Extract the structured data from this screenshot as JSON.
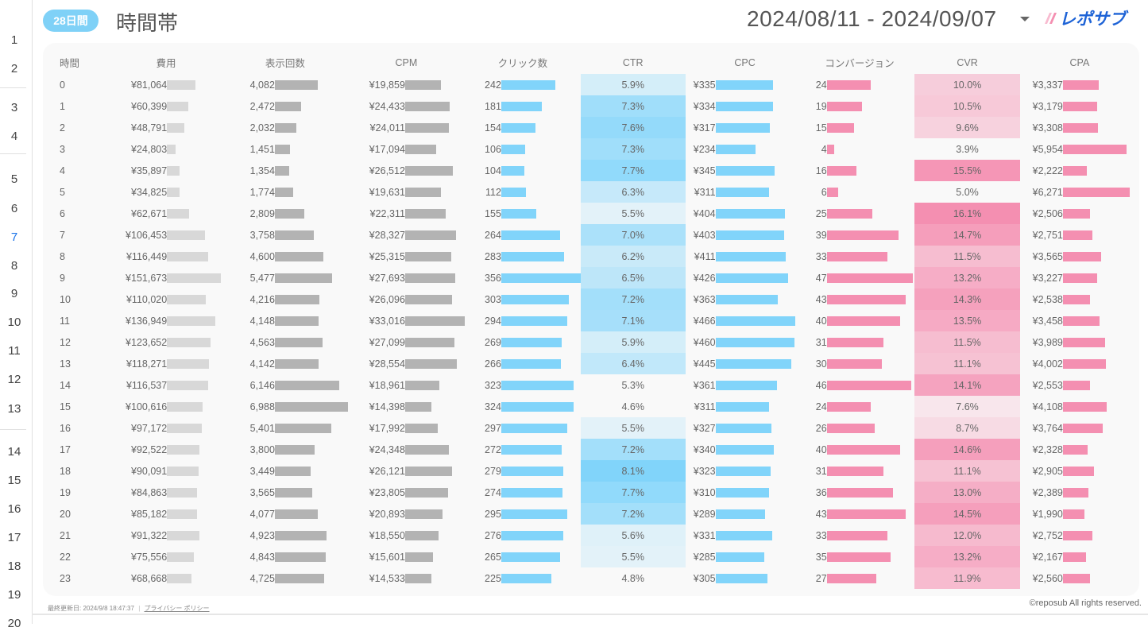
{
  "gutter": {
    "rows": [
      "1",
      "2",
      "3",
      "4",
      "5",
      "6",
      "7",
      "8",
      "9",
      "10",
      "11",
      "12",
      "13",
      "14",
      "15",
      "16",
      "17",
      "18",
      "19",
      "20"
    ],
    "active": "7"
  },
  "header": {
    "period_badge": "28日間",
    "title": "時間帯",
    "date_range": "2024/08/11 - 2024/09/07",
    "dropdown_icon": "caret-down-icon",
    "logo_text": "レポサブ"
  },
  "colors": {
    "badge": "#7fd1f7",
    "gray_light_bar": "#d8d8d8",
    "gray_dark_bar": "#b3b3b3",
    "blue_bar": "#81d4fa",
    "pink_bar": "#f48fb1",
    "ctr_heat_base": "#81d4fa",
    "cvr_heat_base": "#f48fb1",
    "logo_blue": "#1e63d6"
  },
  "table": {
    "headers": [
      "時間",
      "費用",
      "表示回数",
      "CPM",
      "クリック数",
      "CTR",
      "CPC",
      "コンバージョン",
      "CVR",
      "CPA"
    ],
    "rows": [
      {
        "hour": "0",
        "cost": "¥81,064",
        "imp": "4,082",
        "cpm": "¥19,859",
        "clicks": "242",
        "ctr": "5.9%",
        "cpc": "¥335",
        "cv": "24",
        "cvr": "10.0%",
        "cpa": "¥3,337"
      },
      {
        "hour": "1",
        "cost": "¥60,399",
        "imp": "2,472",
        "cpm": "¥24,433",
        "clicks": "181",
        "ctr": "7.3%",
        "cpc": "¥334",
        "cv": "19",
        "cvr": "10.5%",
        "cpa": "¥3,179"
      },
      {
        "hour": "2",
        "cost": "¥48,791",
        "imp": "2,032",
        "cpm": "¥24,011",
        "clicks": "154",
        "ctr": "7.6%",
        "cpc": "¥317",
        "cv": "15",
        "cvr": "9.6%",
        "cpa": "¥3,308"
      },
      {
        "hour": "3",
        "cost": "¥24,803",
        "imp": "1,451",
        "cpm": "¥17,094",
        "clicks": "106",
        "ctr": "7.3%",
        "cpc": "¥234",
        "cv": "4",
        "cvr": "3.9%",
        "cpa": "¥5,954"
      },
      {
        "hour": "4",
        "cost": "¥35,897",
        "imp": "1,354",
        "cpm": "¥26,512",
        "clicks": "104",
        "ctr": "7.7%",
        "cpc": "¥345",
        "cv": "16",
        "cvr": "15.5%",
        "cpa": "¥2,222"
      },
      {
        "hour": "5",
        "cost": "¥34,825",
        "imp": "1,774",
        "cpm": "¥19,631",
        "clicks": "112",
        "ctr": "6.3%",
        "cpc": "¥311",
        "cv": "6",
        "cvr": "5.0%",
        "cpa": "¥6,271"
      },
      {
        "hour": "6",
        "cost": "¥62,671",
        "imp": "2,809",
        "cpm": "¥22,311",
        "clicks": "155",
        "ctr": "5.5%",
        "cpc": "¥404",
        "cv": "25",
        "cvr": "16.1%",
        "cpa": "¥2,506"
      },
      {
        "hour": "7",
        "cost": "¥106,453",
        "imp": "3,758",
        "cpm": "¥28,327",
        "clicks": "264",
        "ctr": "7.0%",
        "cpc": "¥403",
        "cv": "39",
        "cvr": "14.7%",
        "cpa": "¥2,751"
      },
      {
        "hour": "8",
        "cost": "¥116,449",
        "imp": "4,600",
        "cpm": "¥25,315",
        "clicks": "283",
        "ctr": "6.2%",
        "cpc": "¥411",
        "cv": "33",
        "cvr": "11.5%",
        "cpa": "¥3,565"
      },
      {
        "hour": "9",
        "cost": "¥151,673",
        "imp": "5,477",
        "cpm": "¥27,693",
        "clicks": "356",
        "ctr": "6.5%",
        "cpc": "¥426",
        "cv": "47",
        "cvr": "13.2%",
        "cpa": "¥3,227"
      },
      {
        "hour": "10",
        "cost": "¥110,020",
        "imp": "4,216",
        "cpm": "¥26,096",
        "clicks": "303",
        "ctr": "7.2%",
        "cpc": "¥363",
        "cv": "43",
        "cvr": "14.3%",
        "cpa": "¥2,538"
      },
      {
        "hour": "11",
        "cost": "¥136,949",
        "imp": "4,148",
        "cpm": "¥33,016",
        "clicks": "294",
        "ctr": "7.1%",
        "cpc": "¥466",
        "cv": "40",
        "cvr": "13.5%",
        "cpa": "¥3,458"
      },
      {
        "hour": "12",
        "cost": "¥123,652",
        "imp": "4,563",
        "cpm": "¥27,099",
        "clicks": "269",
        "ctr": "5.9%",
        "cpc": "¥460",
        "cv": "31",
        "cvr": "11.5%",
        "cpa": "¥3,989"
      },
      {
        "hour": "13",
        "cost": "¥118,271",
        "imp": "4,142",
        "cpm": "¥28,554",
        "clicks": "266",
        "ctr": "6.4%",
        "cpc": "¥445",
        "cv": "30",
        "cvr": "11.1%",
        "cpa": "¥4,002"
      },
      {
        "hour": "14",
        "cost": "¥116,537",
        "imp": "6,146",
        "cpm": "¥18,961",
        "clicks": "323",
        "ctr": "5.3%",
        "cpc": "¥361",
        "cv": "46",
        "cvr": "14.1%",
        "cpa": "¥2,553"
      },
      {
        "hour": "15",
        "cost": "¥100,616",
        "imp": "6,988",
        "cpm": "¥14,398",
        "clicks": "324",
        "ctr": "4.6%",
        "cpc": "¥311",
        "cv": "24",
        "cvr": "7.6%",
        "cpa": "¥4,108"
      },
      {
        "hour": "16",
        "cost": "¥97,172",
        "imp": "5,401",
        "cpm": "¥17,992",
        "clicks": "297",
        "ctr": "5.5%",
        "cpc": "¥327",
        "cv": "26",
        "cvr": "8.7%",
        "cpa": "¥3,764"
      },
      {
        "hour": "17",
        "cost": "¥92,522",
        "imp": "3,800",
        "cpm": "¥24,348",
        "clicks": "272",
        "ctr": "7.2%",
        "cpc": "¥340",
        "cv": "40",
        "cvr": "14.6%",
        "cpa": "¥2,328"
      },
      {
        "hour": "18",
        "cost": "¥90,091",
        "imp": "3,449",
        "cpm": "¥26,121",
        "clicks": "279",
        "ctr": "8.1%",
        "cpc": "¥323",
        "cv": "31",
        "cvr": "11.1%",
        "cpa": "¥2,905"
      },
      {
        "hour": "19",
        "cost": "¥84,863",
        "imp": "3,565",
        "cpm": "¥23,805",
        "clicks": "274",
        "ctr": "7.7%",
        "cpc": "¥310",
        "cv": "36",
        "cvr": "13.0%",
        "cpa": "¥2,389"
      },
      {
        "hour": "20",
        "cost": "¥85,182",
        "imp": "4,077",
        "cpm": "¥20,893",
        "clicks": "295",
        "ctr": "7.2%",
        "cpc": "¥289",
        "cv": "43",
        "cvr": "14.5%",
        "cpa": "¥1,990"
      },
      {
        "hour": "21",
        "cost": "¥91,322",
        "imp": "4,923",
        "cpm": "¥18,550",
        "clicks": "276",
        "ctr": "5.6%",
        "cpc": "¥331",
        "cv": "33",
        "cvr": "12.0%",
        "cpa": "¥2,752"
      },
      {
        "hour": "22",
        "cost": "¥75,556",
        "imp": "4,843",
        "cpm": "¥15,601",
        "clicks": "265",
        "ctr": "5.5%",
        "cpc": "¥285",
        "cv": "35",
        "cvr": "13.2%",
        "cpa": "¥2,167"
      },
      {
        "hour": "23",
        "cost": "¥68,668",
        "imp": "4,725",
        "cpm": "¥14,533",
        "clicks": "225",
        "ctr": "4.8%",
        "cpc": "¥305",
        "cv": "27",
        "cvr": "11.9%",
        "cpa": "¥2,560"
      }
    ]
  },
  "footer": {
    "last_updated": "最終更新日: 2024/9/8 18:47:37",
    "separator": "|",
    "privacy_link": "プライバシー ポリシー",
    "copyright": "©reposub All rights reserved."
  }
}
